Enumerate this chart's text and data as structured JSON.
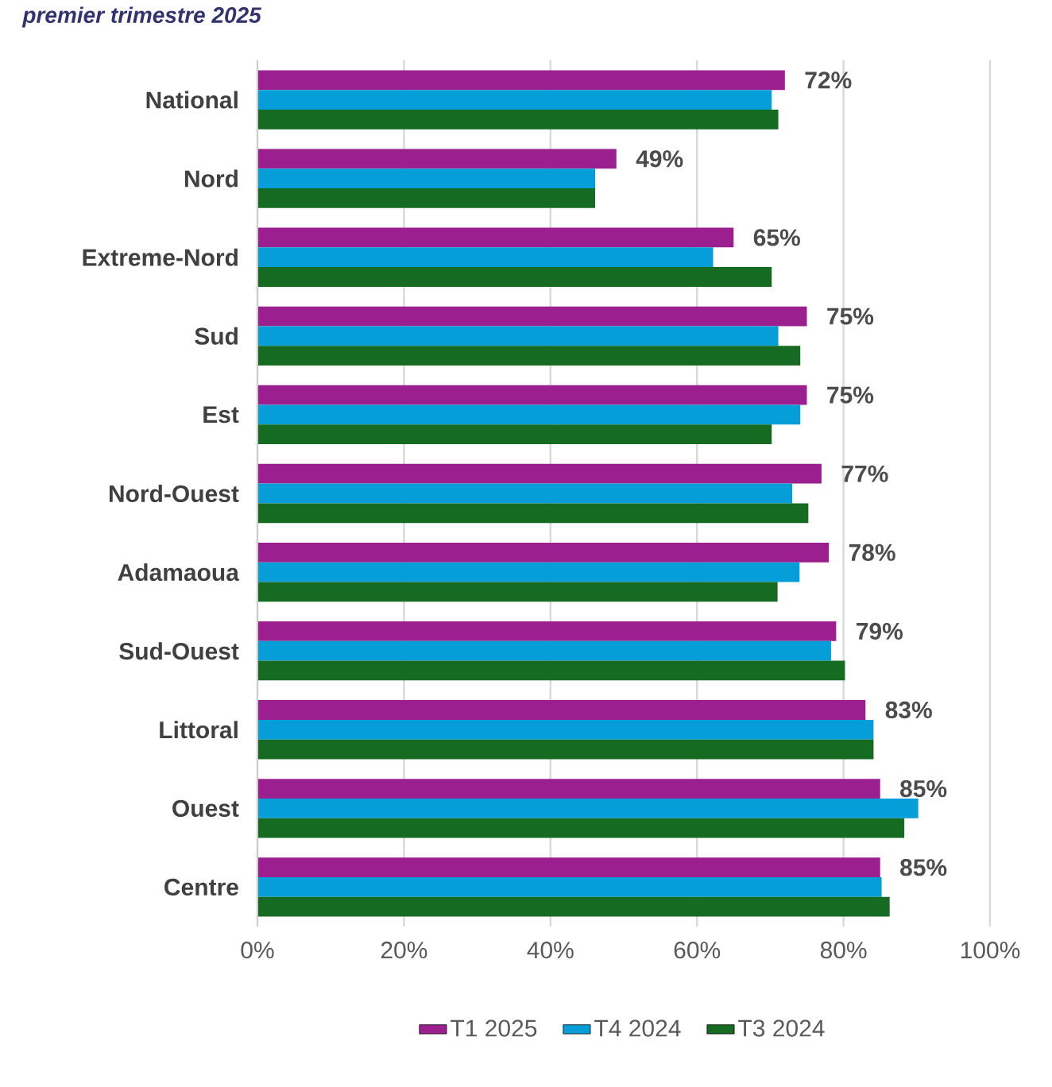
{
  "chart_data": {
    "type": "bar",
    "orientation": "horizontal",
    "title": "premier trimestre 2025",
    "categories": [
      "National",
      "Nord",
      "Extreme-Nord",
      "Sud",
      "Est",
      "Nord-Ouest",
      "Adamaoua",
      "Sud-Ouest",
      "Littoral",
      "Ouest",
      "Centre"
    ],
    "series": [
      {
        "name": "T1 2025",
        "color": "#9c1f8f",
        "values": [
          72,
          49,
          65,
          75,
          75,
          77,
          78,
          79,
          83,
          85,
          85
        ],
        "value_labels": [
          "72%",
          "49%",
          "65%",
          "75%",
          "75%",
          "77%",
          "78%",
          "79%",
          "83%",
          "85%",
          "85%"
        ]
      },
      {
        "name": "T4 2024",
        "color": "#069ed8",
        "values": [
          70.2,
          46.1,
          62.2,
          71.1,
          74.1,
          73.0,
          74.0,
          78.3,
          84.1,
          90.2,
          85.2
        ]
      },
      {
        "name": "T3 2024",
        "color": "#146b21",
        "values": [
          71.1,
          46.1,
          70.2,
          74.1,
          70.2,
          75.2,
          71.0,
          80.2,
          84.1,
          88.3,
          86.3
        ]
      }
    ],
    "xlim": [
      0,
      100
    ],
    "xticks": [
      {
        "value": 0,
        "label": "0%"
      },
      {
        "value": 20,
        "label": "20%"
      },
      {
        "value": 40,
        "label": "40%"
      },
      {
        "value": 60,
        "label": "60%"
      },
      {
        "value": 80,
        "label": "80%"
      },
      {
        "value": 100,
        "label": "100%"
      }
    ],
    "grid": "x",
    "legend": "bottom"
  }
}
